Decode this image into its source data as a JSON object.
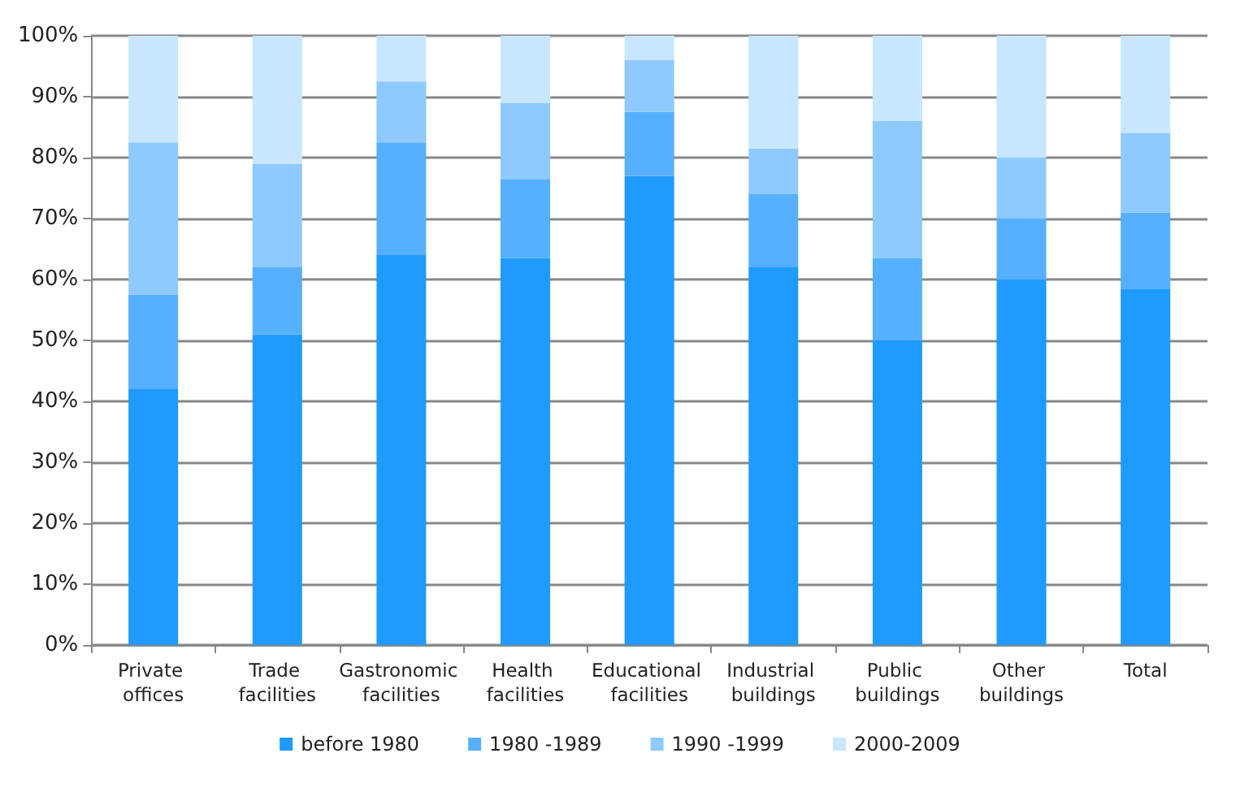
{
  "chart_data": {
    "type": "bar",
    "stacked": true,
    "categories": [
      "Private offices",
      "Trade facilities",
      "Gastronomic facilities",
      "Health facilities",
      "Educational facilities",
      "Industrial buildings",
      "Public buildings",
      "Other buildings",
      "Total"
    ],
    "series": [
      {
        "name": "before 1980",
        "color": "#1f9bff",
        "values": [
          42,
          51,
          64,
          63.5,
          77,
          62,
          50,
          60,
          58.5
        ]
      },
      {
        "name": "1980 -1989",
        "color": "#56b0ff",
        "values": [
          15.5,
          11,
          18.5,
          13,
          10.5,
          12,
          13.5,
          10,
          12.5
        ]
      },
      {
        "name": "1990 -1999",
        "color": "#8ecaff",
        "values": [
          25,
          17,
          10,
          12.5,
          8.5,
          7.5,
          22.5,
          10,
          13
        ]
      },
      {
        "name": "2000-2009",
        "color": "#c9e6ff",
        "values": [
          17.5,
          21,
          7.5,
          11,
          4,
          18.5,
          14,
          20,
          16
        ]
      }
    ],
    "ylim": [
      0,
      100
    ],
    "yticks": [
      {
        "value": 0,
        "label": "0%"
      },
      {
        "value": 10,
        "label": "10%"
      },
      {
        "value": 20,
        "label": "20%"
      },
      {
        "value": 30,
        "label": "30%"
      },
      {
        "value": 40,
        "label": "40%"
      },
      {
        "value": 50,
        "label": "50%"
      },
      {
        "value": 60,
        "label": "60%"
      },
      {
        "value": 70,
        "label": "70%"
      },
      {
        "value": 80,
        "label": "80%"
      },
      {
        "value": 90,
        "label": "90%"
      },
      {
        "value": 100,
        "label": "100%"
      }
    ],
    "grid": "y",
    "legend": "bottom"
  }
}
